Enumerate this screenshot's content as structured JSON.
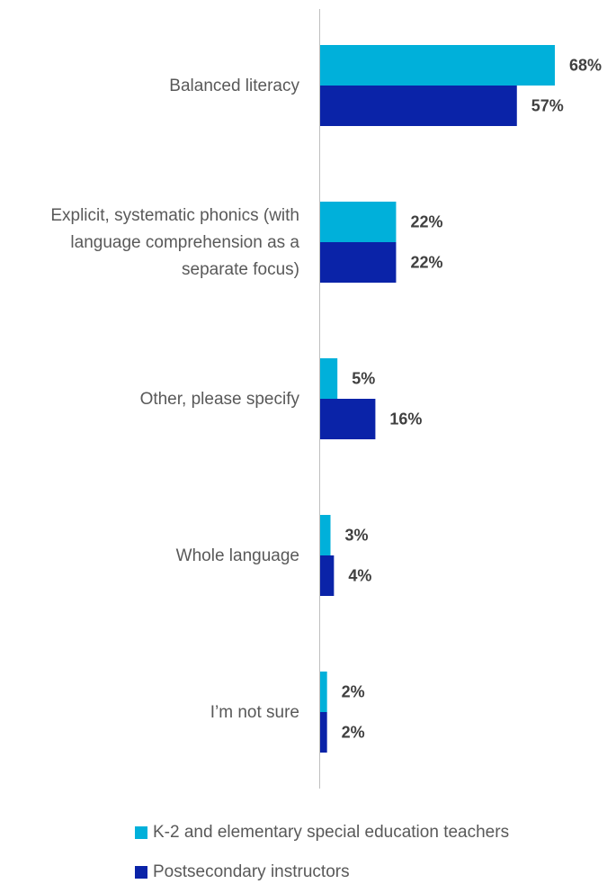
{
  "chart_data": {
    "type": "bar",
    "orientation": "horizontal",
    "categories": [
      "Balanced literacy",
      "Explicit, systematic phonics (with language comprehension as a separate focus)",
      "Other, please specify",
      "Whole language",
      "I’m not sure"
    ],
    "category_lines": [
      [
        "Balanced literacy"
      ],
      [
        "Explicit, systematic phonics (with",
        "language comprehension as a",
        "separate focus)"
      ],
      [
        "Other, please specify"
      ],
      [
        "Whole language"
      ],
      [
        "I’m not sure"
      ]
    ],
    "series": [
      {
        "name": "K-2 and elementary special education teachers",
        "color": "#00B0DA",
        "values": [
          68,
          22,
          5,
          3,
          2
        ],
        "labels": [
          "68%",
          "22%",
          "5%",
          "3%",
          "2%"
        ]
      },
      {
        "name": "Postsecondary instructors",
        "color": "#0A23A8",
        "values": [
          57,
          22,
          16,
          4,
          2
        ],
        "labels": [
          "57%",
          "22%",
          "16%",
          "4%",
          "2%"
        ]
      }
    ],
    "xlim": [
      0,
      70
    ],
    "grid": false,
    "legend_position": "bottom"
  }
}
